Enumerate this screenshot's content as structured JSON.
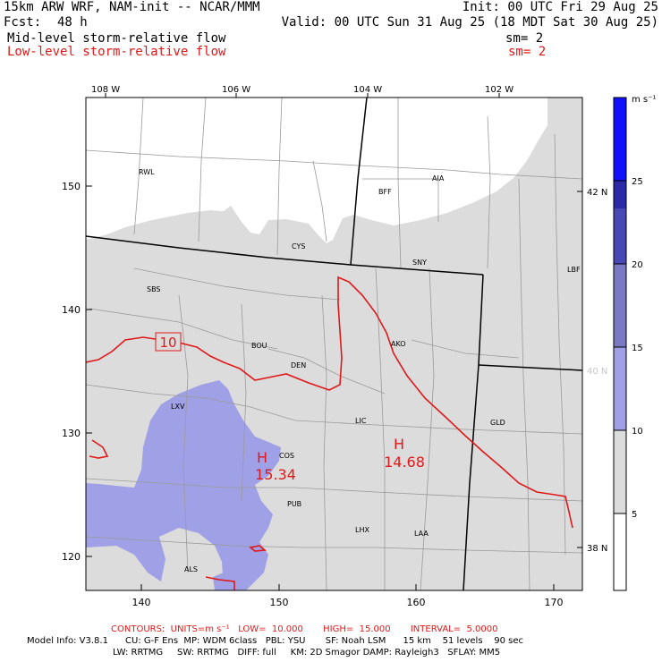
{
  "header": {
    "model": "15km ARW WRF, NAM-init -- NCAR/MMM",
    "init": "Init: 00 UTC Fri 29 Aug 25",
    "fcst_label": "Fcst:",
    "fcst_value": "48 h",
    "valid": "Valid: 00 UTC Sun 31 Aug 25 (18 MDT Sat 30 Aug 25)",
    "mid_flow": "Mid-level storm-relative flow",
    "mid_sm": "sm= 2",
    "low_flow": "Low-level storm-relative flow",
    "low_sm": "sm= 2"
  },
  "axes": {
    "top_lon": [
      "108 W",
      "106 W",
      "104 W",
      "102 W"
    ],
    "left_y": [
      "150",
      "140",
      "130",
      "120"
    ],
    "bottom_x": [
      "140",
      "150",
      "160",
      "170"
    ],
    "right_lat": [
      "42 N",
      "40 N",
      "38 N"
    ]
  },
  "stations": [
    "RWL",
    "BFF",
    "AIA",
    "CYS",
    "SNY",
    "SBS",
    "LBF",
    "BOU",
    "AKO",
    "DEN",
    "LXV",
    "LIC",
    "GLD",
    "COS",
    "PUB",
    "LHX",
    "LAA",
    "ALS"
  ],
  "contour_labels": {
    "c10": "10",
    "high1_mark": "H",
    "high1_value": "15.34",
    "high2_mark": "H",
    "high2_value": "14.68"
  },
  "colorbar": {
    "unit": "m s⁻¹",
    "ticks": [
      "25",
      "20",
      "15",
      "10",
      "5"
    ],
    "colors": [
      "#ffffff",
      "#dcdcdc",
      "#a0a0e6",
      "#7a7ac4",
      "#4848b4",
      "#2a2aa8",
      "#1010ff"
    ]
  },
  "footer": {
    "contours": "CONTOURS:  UNITS=m s⁻¹   LOW=  10.000       HIGH=  15.000       INTERVAL=  5.0000",
    "model_info_1": "Model Info: V3.8.1      CU: G-F Ens  MP: WDM 6class   PBL: YSU       SF: Noah LSM      15 km    51 levels    90 sec",
    "model_info_2": "LW: RRTMG     SW: RRTMG   DIFF: full     KM: 2D Smagor DAMP: Rayleigh3   SFLAY: MM5"
  }
}
